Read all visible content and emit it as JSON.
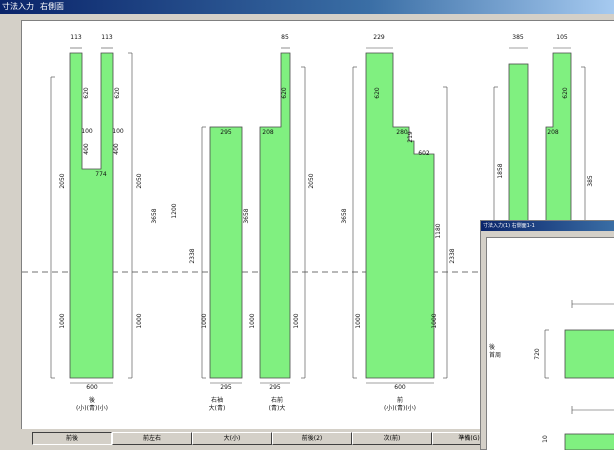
{
  "window": {
    "title": "寸法入力",
    "title2": "右側面"
  },
  "diagram": {
    "panels": [
      {
        "label1": "後",
        "label2": "(小)(青)(小)"
      },
      {
        "label1": "右袖",
        "label2": "大(青)"
      },
      {
        "label1": "右前",
        "label2": "(青)大"
      },
      {
        "label1": "前",
        "label2": "(小)(青)(小)"
      }
    ],
    "dims": {
      "d113a": "113",
      "d113b": "113",
      "d620a": "620",
      "d620b": "620",
      "d100a": "100",
      "d100b": "100",
      "d400a": "400",
      "d400b": "400",
      "d774": "774",
      "d2050a": "2050",
      "d2050b": "2050",
      "d3658a": "3658",
      "d1000a": "1000",
      "d1000b": "1000",
      "d600a": "600",
      "d1200": "1200",
      "d2338a": "2338",
      "d295a": "295",
      "d1000c": "1000",
      "d295b": "295",
      "d85": "85",
      "d620c": "620",
      "d208a": "208",
      "d2050c": "2050",
      "d3658b": "3658",
      "d1000d": "1000",
      "d1000e": "1000",
      "d295c": "295",
      "d229": "229",
      "d620d": "620",
      "d280": "280",
      "d219": "219",
      "d602": "602",
      "d1180": "1180",
      "d3658c": "3658",
      "d2338b": "2338",
      "d1000f": "1000",
      "d1000g": "1000",
      "d600b": "600",
      "d385": "385",
      "d105": "105",
      "d1858": "1858",
      "d620e": "620",
      "d208b": "208",
      "d385v": "385"
    }
  },
  "sub_window": {
    "title": "寸法入力(1) 右側面1-1",
    "label_ushiro": "後",
    "label_kubi": "首周",
    "dim720": "720",
    "dim_bot": "10"
  },
  "tabs": [
    "前後",
    "前左右",
    "大(小)",
    "前後(2)",
    "次(前)",
    "準備(G)"
  ]
}
